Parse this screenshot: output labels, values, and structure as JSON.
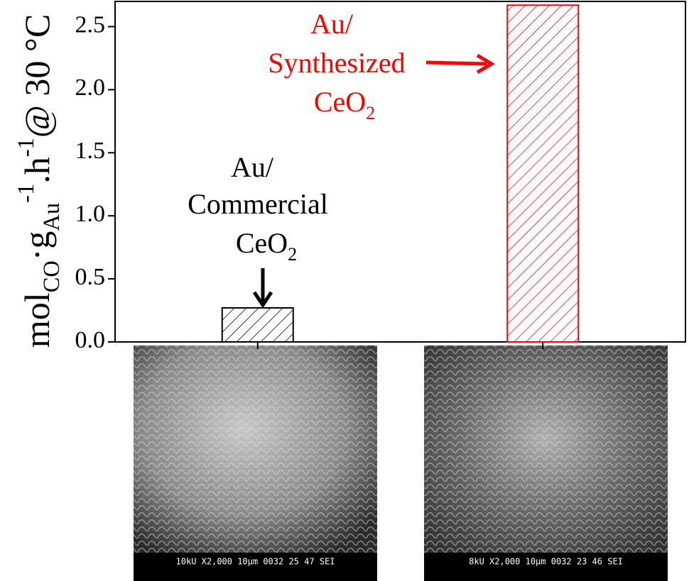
{
  "chart_data": {
    "type": "bar",
    "y_label": [
      {
        "t": "mol"
      },
      {
        "t": "CO",
        "s": "sub"
      },
      {
        "t": "·g"
      },
      {
        "t": "Au",
        "s": "sub"
      },
      {
        "t": "-1",
        "s": "sup"
      },
      {
        "t": ".h"
      },
      {
        "t": "-1",
        "s": "sup"
      },
      {
        "t": "@ 30 °C"
      }
    ],
    "categories": [
      null,
      null
    ],
    "values": [
      0.27,
      2.67
    ],
    "colors": [
      "#000000",
      "#ff0000"
    ],
    "ylim": [
      0,
      2.7
    ],
    "yticks": [
      {
        "value": 0,
        "label": "0.0"
      },
      {
        "value": 0.5,
        "label": "0.5"
      },
      {
        "value": 1,
        "label": "1.0"
      },
      {
        "value": 1.5,
        "label": "1.5"
      },
      {
        "value": 2,
        "label": "2.0"
      },
      {
        "value": 2.5,
        "label": "2.5"
      }
    ],
    "annotations": [
      {
        "color": "#000000",
        "lines": [
          [
            {
              "t": "Au/"
            }
          ],
          [
            {
              "t": "Commercial"
            }
          ],
          [
            {
              "t": "CeO"
            },
            {
              "t": "2",
              "s": "sub"
            }
          ]
        ]
      },
      {
        "color": "#ff0000",
        "lines": [
          [
            {
              "t": "Au/"
            }
          ],
          [
            {
              "t": "Synthesized"
            }
          ],
          [
            {
              "t": "CeO"
            },
            {
              "t": "2",
              "s": "sub"
            }
          ]
        ]
      }
    ],
    "image_captions": [
      "10kU  X2,000  10μm 0032 25 47 SEI",
      "8kU  X2,000  10μm 0032 23 46 SEI"
    ]
  }
}
